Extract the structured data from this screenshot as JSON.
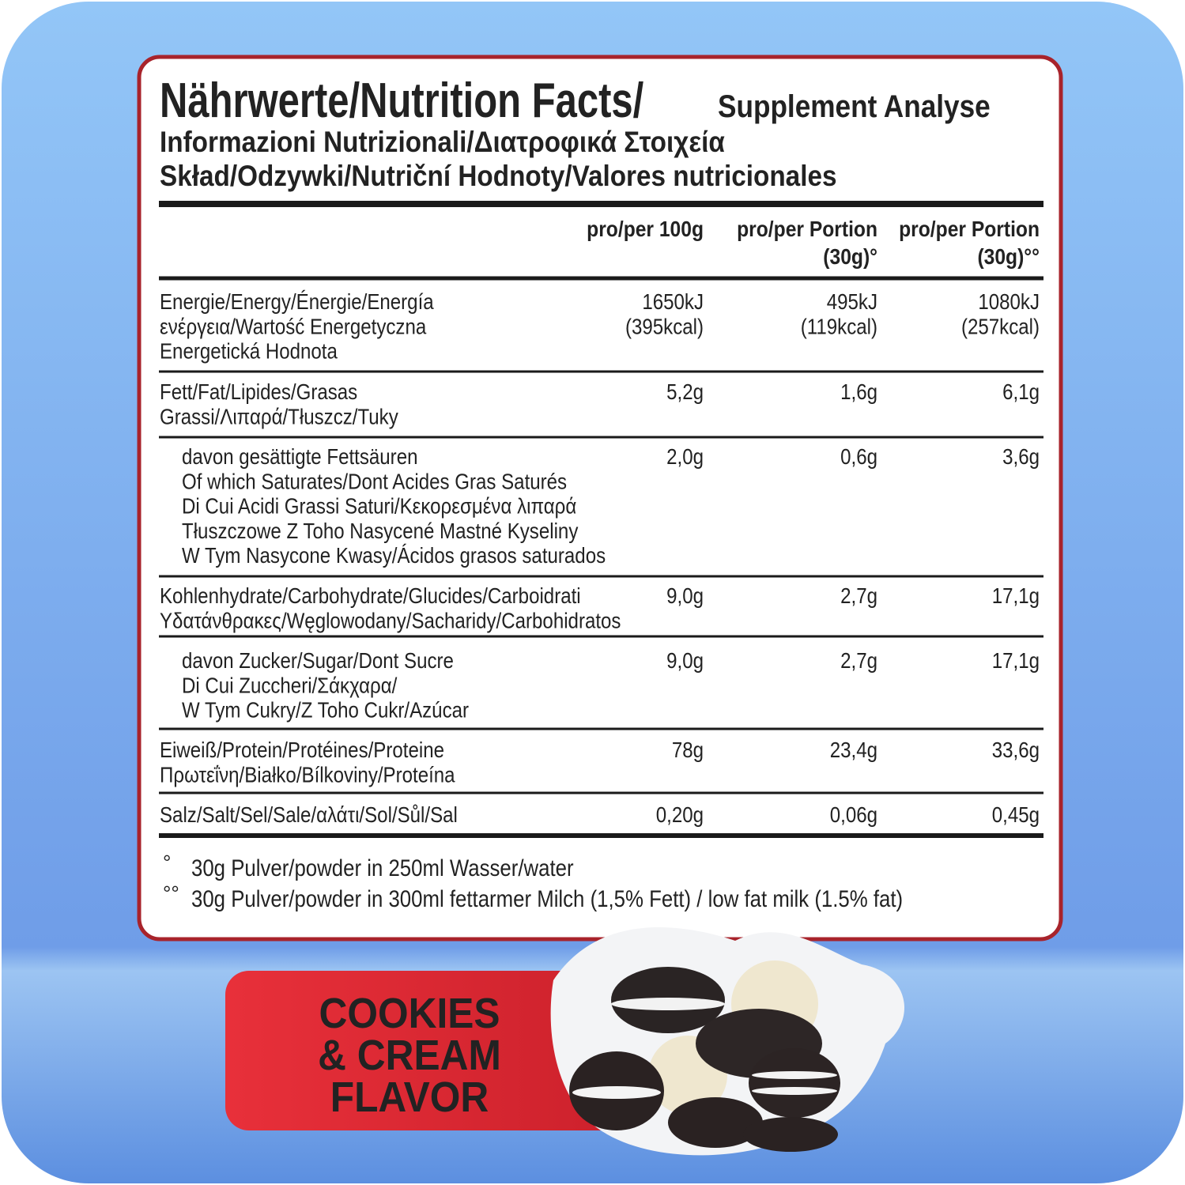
{
  "title": {
    "line1_main": "Nährwerte/Nutrition Facts/",
    "line1_sub": "Supplement Analyse",
    "line2": "Informazioni Nutrizionali/Διατροφικά Στοιχεία",
    "line3": "Skład/Odzywki/Nutriční Hodnoty/Valores nutricionales"
  },
  "table": {
    "header": [
      [
        "pro/per 100g"
      ],
      [
        "pro/per Portion",
        "(30g)°"
      ],
      [
        "pro/per Portion",
        "(30g)°°"
      ]
    ],
    "rows": [
      {
        "label": [
          "Energie/Energy/Énergie/Energía",
          "ενέργεια/Wartość Energetyczna",
          "Energetická Hodnota"
        ],
        "values": [
          [
            "1650kJ",
            "(395kcal)"
          ],
          [
            "495kJ",
            "(119kcal)"
          ],
          [
            "1080kJ",
            "(257kcal)"
          ]
        ]
      },
      {
        "label": [
          "Fett/Fat/Lipides/Grasas",
          "Grassi/Λιπαρά/Tłuszcz/Tuky"
        ],
        "values": [
          [
            "5,2g"
          ],
          [
            "1,6g"
          ],
          [
            "6,1g"
          ]
        ]
      },
      {
        "label": [
          "davon gesättigte Fettsäuren",
          "Of which Saturates/Dont Acides Gras Saturés",
          "Di Cui Acidi Grassi Saturi/Κεκορεσμένα λιπαρά",
          "Tłuszczowe Z Toho Nasycené Mastné Kyseliny",
          "W Tym Nasycone Kwasy/Ácidos grasos saturados"
        ],
        "values": [
          [
            "2,0g"
          ],
          [
            "0,6g"
          ],
          [
            "3,6g"
          ]
        ]
      },
      {
        "label": [
          "Kohlenhydrate/Carbohydrate/Glucides/Carboidrati",
          "Υδατάνθρακες/Węglowodany/Sacharidy/Carbohidratos"
        ],
        "values": [
          [
            "9,0g"
          ],
          [
            "2,7g"
          ],
          [
            "17,1g"
          ]
        ]
      },
      {
        "label": [
          "davon Zucker/Sugar/Dont Sucre",
          "Di Cui Zuccheri/Σάκχαρα/",
          "W Tym Cukry/Z Toho Cukr/Azúcar"
        ],
        "values": [
          [
            "9,0g"
          ],
          [
            "2,7g"
          ],
          [
            "17,1g"
          ]
        ]
      },
      {
        "label": [
          "Eiweiß/Protein/Protéines/Proteine",
          "Πρωτεΐνη/Białko/Bílkoviny/Proteína"
        ],
        "values": [
          [
            "78g"
          ],
          [
            "23,4g"
          ],
          [
            "33,6g"
          ]
        ]
      },
      {
        "label": [
          "Salz/Salt/Sel/Sale/αλάτι/Sol/Sůl/Sal"
        ],
        "values": [
          [
            "0,20g"
          ],
          [
            "0,06g"
          ],
          [
            "0,45g"
          ]
        ]
      }
    ]
  },
  "footnotes": [
    {
      "marker": "°",
      "text": "30g Pulver/powder in 250ml Wasser/water"
    },
    {
      "marker": "°°",
      "text": "30g Pulver/powder in 300ml fettarmer Milch (1,5% Fett)  /  low fat milk (1.5% fat)"
    }
  ],
  "flavor": [
    "COOKIES",
    "& CREAM",
    "FLAVOR"
  ]
}
